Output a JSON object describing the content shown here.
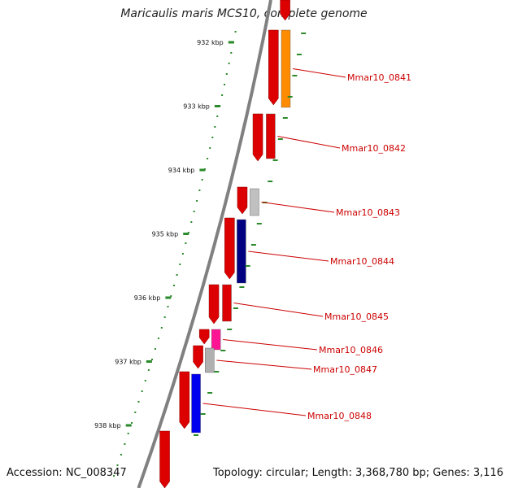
{
  "title": "Maricaulis maris MCS10, complete genome",
  "accession": "Accession: NC_008347",
  "summary": "Topology: circular; Length: 3,368,780 bp; Genes: 3,116",
  "ticks": [
    {
      "label": "932 kbp"
    },
    {
      "label": "933 kbp"
    },
    {
      "label": "934 kbp"
    },
    {
      "label": "935 kbp"
    },
    {
      "label": "936 kbp"
    },
    {
      "label": "937 kbp"
    },
    {
      "label": "938 kbp"
    }
  ],
  "genes": [
    {
      "label": "Mmar10_0841",
      "color": "#ff8c00"
    },
    {
      "label": "Mmar10_0842",
      "color": "#dd0000"
    },
    {
      "label": "Mmar10_0843",
      "color": "#c0c0c0"
    },
    {
      "label": "Mmar10_0844",
      "color": "#000080"
    },
    {
      "label": "Mmar10_0845",
      "color": "#dd0000"
    },
    {
      "label": "Mmar10_0846",
      "color": "#ff1493"
    },
    {
      "label": "Mmar10_0847",
      "color": "#b0b0b0"
    },
    {
      "label": "Mmar10_0848",
      "color": "#0000ee"
    }
  ],
  "colors": {
    "backbone": "#808080",
    "cds": "#dd0000",
    "tick": "#2a8a2a",
    "label": "#cc0000",
    "leader": "#cc0000"
  }
}
